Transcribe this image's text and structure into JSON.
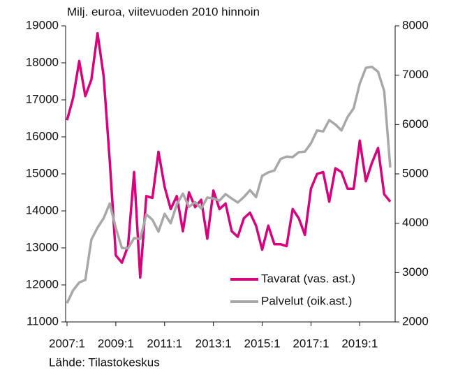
{
  "chart_data": {
    "type": "line",
    "title": "Milj. euroa, viitevuoden 2010 hinnoin",
    "source": "Lähde: Tilastokeskus",
    "categories": [
      "2007:1",
      null,
      null,
      null,
      null,
      null,
      null,
      null,
      "2009:1",
      null,
      null,
      null,
      null,
      null,
      null,
      null,
      "2011:1",
      null,
      null,
      null,
      null,
      null,
      null,
      null,
      "2013:1",
      null,
      null,
      null,
      null,
      null,
      null,
      null,
      "2015:1",
      null,
      null,
      null,
      null,
      null,
      null,
      null,
      "2017:1",
      null,
      null,
      null,
      null,
      null,
      null,
      null,
      "2019:1",
      null,
      null,
      null,
      null,
      null
    ],
    "series": [
      {
        "name": "Tavarat (vas. ast.)",
        "color": "#d4037c",
        "axis": "y",
        "values": [
          16450,
          17050,
          18050,
          17100,
          17550,
          18800,
          17650,
          15350,
          12800,
          12600,
          13050,
          15050,
          12200,
          14400,
          14350,
          15600,
          14650,
          14050,
          14400,
          13450,
          14500,
          14100,
          14300,
          13250,
          14550,
          14050,
          14200,
          13450,
          13300,
          13800,
          13950,
          13600,
          12950,
          13600,
          13100,
          13100,
          13050,
          14050,
          13800,
          13350,
          14600,
          15000,
          15050,
          14250,
          15150,
          15050,
          14600,
          14600,
          15900,
          14800,
          15300,
          15700,
          14450,
          14250
        ]
      },
      {
        "name": "Palvelut (oik.ast.)",
        "color": "#a8a8a8",
        "axis": "y2",
        "values": [
          2380,
          2640,
          2800,
          2850,
          3670,
          3910,
          4100,
          4400,
          3900,
          3500,
          3490,
          3700,
          3680,
          4180,
          4070,
          3830,
          4190,
          4000,
          4380,
          4600,
          4330,
          4430,
          4300,
          4520,
          4500,
          4460,
          4590,
          4500,
          4420,
          4530,
          4670,
          4530,
          4960,
          5030,
          5070,
          5300,
          5350,
          5340,
          5440,
          5450,
          5620,
          5880,
          5860,
          6090,
          6000,
          5880,
          6150,
          6330,
          6830,
          7150,
          7170,
          7070,
          6680,
          5130
        ]
      }
    ],
    "ylim": [
      11000,
      19000
    ],
    "yticks": [
      11000,
      12000,
      13000,
      14000,
      15000,
      16000,
      17000,
      18000,
      19000
    ],
    "y2lim": [
      2000,
      8000
    ],
    "y2ticks": [
      2000,
      3000,
      4000,
      5000,
      6000,
      7000,
      8000
    ],
    "legend": "lower right",
    "grid": false
  }
}
